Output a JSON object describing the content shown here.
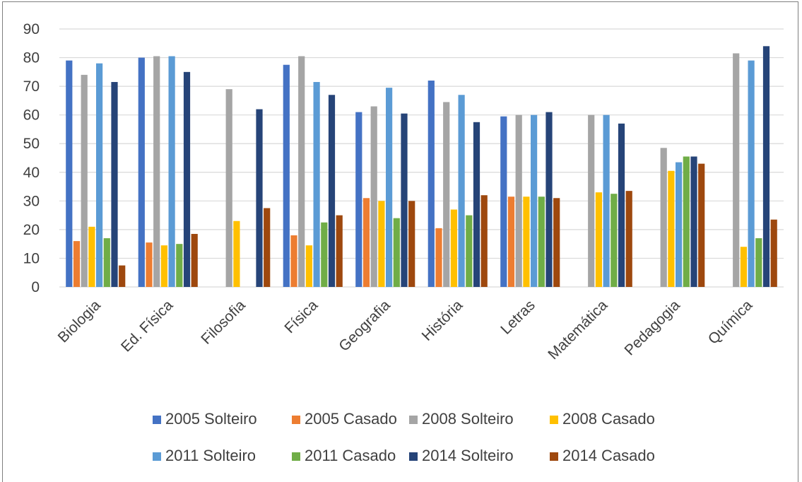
{
  "chart_data": {
    "type": "bar",
    "title": "",
    "xlabel": "",
    "ylabel": "",
    "ylim": [
      0,
      90
    ],
    "yticks": [
      "0",
      "10",
      "20",
      "30",
      "40",
      "50",
      "60",
      "70",
      "80",
      "90"
    ],
    "grid": true,
    "legend_position": "bottom",
    "categories": [
      "Biologia",
      "Ed. Física",
      "Filosofia",
      "Física",
      "Geografia",
      "História",
      "Letras",
      "Matemática",
      "Pedagogia",
      "Química"
    ],
    "series": [
      {
        "name": "2005 Solteiro",
        "color": "#4472c4",
        "values": [
          79,
          80,
          null,
          77.5,
          61,
          72,
          59.5,
          null,
          null,
          null
        ]
      },
      {
        "name": "2005 Casado",
        "color": "#ed7d31",
        "values": [
          16,
          15.5,
          null,
          18,
          31,
          20.5,
          31.5,
          null,
          null,
          null
        ]
      },
      {
        "name": "2008 Solteiro",
        "color": "#a5a5a5",
        "values": [
          74,
          80.5,
          69,
          80.5,
          63,
          64.5,
          60,
          60,
          48.5,
          81.5
        ]
      },
      {
        "name": "2008 Casado",
        "color": "#ffc000",
        "values": [
          21,
          14.5,
          23,
          14.5,
          30,
          27,
          31.5,
          33,
          40.5,
          14
        ]
      },
      {
        "name": "2011 Solteiro",
        "color": "#5b9bd5",
        "values": [
          78,
          80.5,
          null,
          71.5,
          69.5,
          67,
          60,
          60,
          43.5,
          79
        ]
      },
      {
        "name": "2011 Casado",
        "color": "#70ad47",
        "values": [
          17,
          15,
          null,
          22.5,
          24,
          25,
          31.5,
          32.5,
          45.5,
          17
        ]
      },
      {
        "name": "2014 Solteiro",
        "color": "#264478",
        "values": [
          71.5,
          75,
          62,
          67,
          60.5,
          57.5,
          61,
          57,
          45.5,
          84
        ]
      },
      {
        "name": "2014 Casado",
        "color": "#9e480e",
        "values": [
          7.5,
          18.5,
          27.5,
          25,
          30,
          32,
          31,
          33.5,
          43,
          23.5
        ]
      }
    ]
  }
}
